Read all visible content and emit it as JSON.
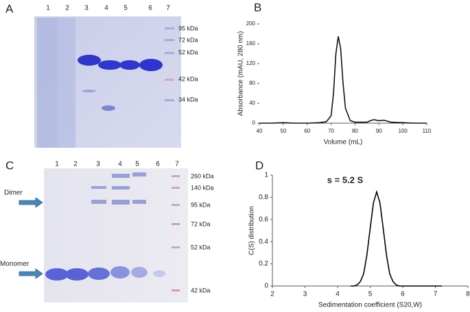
{
  "panel_labels": [
    "A",
    "B",
    "C",
    "D"
  ],
  "gel_a": {
    "lanes": [
      "1",
      "2",
      "3",
      "4",
      "5",
      "6",
      "7"
    ],
    "markers": [
      "95 kDa",
      "72 kDa",
      "52 kDa",
      "42 kDa",
      "34 kDa"
    ]
  },
  "gel_c": {
    "lanes": [
      "1",
      "2",
      "3",
      "4",
      "5",
      "6",
      "7"
    ],
    "markers": [
      "260 kDa",
      "140 kDa",
      "95 kDa",
      "72 kDa",
      "52 kDa",
      "42 kDa"
    ],
    "arrows": [
      "Dimer",
      "Monomer"
    ]
  },
  "chart_data": [
    {
      "type": "line",
      "x_label": "Volume (mL)",
      "y_label": "Absorbance (mAU, 280 nm)",
      "color": "#111111",
      "x": [
        40,
        45,
        50,
        55,
        60,
        65,
        68,
        70,
        71,
        72,
        73,
        74,
        75,
        76,
        78,
        80,
        85,
        87,
        88,
        90,
        92,
        95,
        100,
        105,
        110
      ],
      "values": [
        0,
        0,
        1,
        0,
        0,
        1,
        3,
        15,
        60,
        140,
        175,
        150,
        80,
        30,
        5,
        2,
        2,
        6,
        7,
        5,
        6,
        2,
        1,
        0,
        0
      ],
      "xlim": [
        40,
        110
      ],
      "xticks": [
        40,
        50,
        60,
        70,
        80,
        90,
        100,
        110
      ],
      "ylim": [
        0,
        200
      ],
      "yticks": [
        0,
        40,
        80,
        120,
        160,
        200
      ],
      "grid": false
    },
    {
      "type": "line",
      "x_label": "Sedimentation coefficient (S20,W)",
      "y_label": "C(S) distribution",
      "annotation": "s = 5.2 S",
      "color": "#000000",
      "x": [
        4.4,
        4.5,
        4.6,
        4.7,
        4.8,
        4.9,
        5.0,
        5.1,
        5.2,
        5.3,
        5.4,
        5.5,
        5.6,
        5.7,
        5.8,
        5.9,
        6.0,
        7.2
      ],
      "values": [
        0,
        0,
        0.01,
        0.04,
        0.11,
        0.28,
        0.52,
        0.75,
        0.85,
        0.75,
        0.52,
        0.28,
        0.11,
        0.04,
        0.01,
        0,
        0,
        0
      ],
      "xlim": [
        2,
        8
      ],
      "xticks": [
        2,
        3,
        4,
        5,
        6,
        7,
        8
      ],
      "ylim": [
        0,
        1
      ],
      "yticks": [
        0,
        0.2,
        0.4,
        0.6,
        0.8,
        1
      ],
      "grid": false
    }
  ]
}
